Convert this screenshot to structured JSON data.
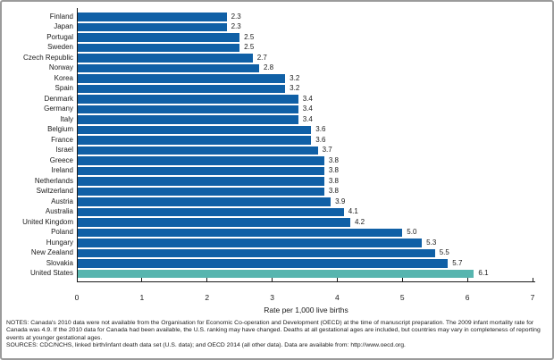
{
  "chart_data": {
    "type": "bar",
    "orientation": "horizontal",
    "title": "",
    "xlabel": "Rate per 1,000 live births",
    "xlim": [
      0,
      7
    ],
    "xticks": [
      0,
      1,
      2,
      3,
      4,
      5,
      6,
      7
    ],
    "grid": false,
    "legend": false,
    "categories": [
      "Finland",
      "Japan",
      "Portugal",
      "Sweden",
      "Czech Republic",
      "Norway",
      "Korea",
      "Spain",
      "Denmark",
      "Germany",
      "Italy",
      "Belgium",
      "France",
      "Israel",
      "Greece",
      "Ireland",
      "Netherlands",
      "Switzerland",
      "Austria",
      "Australia",
      "United Kingdom",
      "Poland",
      "Hungary",
      "New Zealand",
      "Slovakia",
      "United States"
    ],
    "values": [
      2.3,
      2.3,
      2.5,
      2.5,
      2.7,
      2.8,
      3.2,
      3.2,
      3.4,
      3.4,
      3.4,
      3.6,
      3.6,
      3.7,
      3.8,
      3.8,
      3.8,
      3.8,
      3.9,
      4.1,
      4.2,
      5.0,
      5.3,
      5.5,
      5.7,
      6.1
    ],
    "value_labels": [
      "2.3",
      "2.3",
      "2.5",
      "2.5",
      "2.7",
      "2.8",
      "3.2",
      "3.2",
      "3.4",
      "3.4",
      "3.4",
      "3.6",
      "3.6",
      "3.7",
      "3.8",
      "3.8",
      "3.8",
      "3.8",
      "3.9",
      "4.1",
      "4.2",
      "5.0",
      "5.3",
      "5.5",
      "5.7",
      "6.1"
    ],
    "highlight_category": "United States",
    "colors": {
      "bar": "#1060A6",
      "highlight": "#57B5AF",
      "axis": "#1a1a1a"
    }
  },
  "footer": {
    "notes": "NOTES: Canada's 2010 data were not available from the Organisation for Economic Co-operation and Development (OECD) at the time of manuscript preparation. The 2009 infant mortality rate for Canada was 4.9. If the 2010 data for Canada had been available, the U.S. ranking may have changed. Deaths at all gestational ages are included, but countries may vary in completeness of reporting events at younger gestational ages.",
    "sources": "SOURCES: CDC/NCHS, linked birth/infant death data set (U.S. data); and OECD 2014 (all other data). Data are available from: http://www.oecd.org."
  }
}
